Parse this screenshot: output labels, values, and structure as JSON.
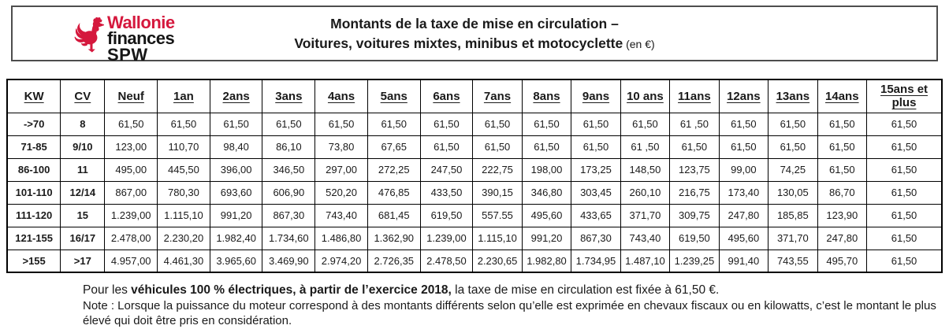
{
  "banner": {
    "logo": {
      "line1": "Wallonie",
      "line2": "finances",
      "line3": "SPW",
      "rooster_color": "#d5183d"
    },
    "title_line1": "Montants de la taxe de mise en circulation –",
    "title_line2_bold": "Voitures, voitures mixtes, minibus et motocyclette",
    "title_line2_suffix": " (en €)"
  },
  "table": {
    "columns": [
      "KW",
      "CV",
      "Neuf",
      "1an",
      "2ans",
      "3ans",
      "4ans",
      "5ans",
      "6ans",
      "7ans",
      "8ans",
      "9ans",
      "10 ans",
      "11ans",
      "12ans",
      "13ans",
      "14ans",
      "15ans et plus"
    ],
    "rows": [
      {
        "kw": "->70",
        "cv": "8",
        "values": [
          "61,50",
          "61,50",
          "61,50",
          "61,50",
          "61,50",
          "61,50",
          "61,50",
          "61,50",
          "61,50",
          "61,50",
          "61,50",
          "61 ,50",
          "61,50",
          "61,50",
          "61,50",
          "61,50"
        ]
      },
      {
        "kw": "71-85",
        "cv": "9/10",
        "values": [
          "123,00",
          "110,70",
          "98,40",
          "86,10",
          "73,80",
          "67,65",
          "61,50",
          "61,50",
          "61,50",
          "61,50",
          "61 ,50",
          "61,50",
          "61,50",
          "61,50",
          "61,50",
          "61,50"
        ]
      },
      {
        "kw": "86-100",
        "cv": "11",
        "values": [
          "495,00",
          "445,50",
          "396,00",
          "346,50",
          "297,00",
          "272,25",
          "247,50",
          "222,75",
          "198,00",
          "173,25",
          "148,50",
          "123,75",
          "99,00",
          "74,25",
          "61,50",
          "61,50"
        ]
      },
      {
        "kw": "101-110",
        "cv": "12/14",
        "values": [
          "867,00",
          "780,30",
          "693,60",
          "606,90",
          "520,20",
          "476,85",
          "433,50",
          "390,15",
          "346,80",
          "303,45",
          "260,10",
          "216,75",
          "173,40",
          "130,05",
          "86,70",
          "61,50"
        ]
      },
      {
        "kw": "111-120",
        "cv": "15",
        "values": [
          "1.239,00",
          "1.115,10",
          "991,20",
          "867,30",
          "743,40",
          "681,45",
          "619,50",
          "557.55",
          "495,60",
          "433,65",
          "371,70",
          "309,75",
          "247,80",
          "185,85",
          "123,90",
          "61,50"
        ]
      },
      {
        "kw": "121-155",
        "cv": "16/17",
        "values": [
          "2.478,00",
          "2.230,20",
          "1.982,40",
          "1.734,60",
          "1.486,80",
          "1.362,90",
          "1.239,00",
          "1.115,10",
          "991,20",
          "867,30",
          "743,40",
          "619,50",
          "495,60",
          "371,70",
          "247,80",
          "61,50"
        ]
      },
      {
        "kw": ">155",
        "cv": ">17",
        "values": [
          "4.957,00",
          "4.461,30",
          "3.965,60",
          "3.469,90",
          "2.974,20",
          "2.726,35",
          "2.478,50",
          "2.230,65",
          "1.982,80",
          "1.734,95",
          "1.487,10",
          "1.239,25",
          "991,40",
          "743,55",
          "495,70",
          "61,50"
        ]
      }
    ]
  },
  "footer": {
    "line1_prefix": "Pour les ",
    "line1_bold": "véhicules 100 % électriques, à partir de l’exercice 2018,",
    "line1_suffix": " la taxe de mise en circulation est fixée à 61,50 €.",
    "note": "Note : Lorsque la puissance du moteur correspond à des montants différents selon qu’elle est exprimée en chevaux fiscaux ou en kilowatts, c’est le montant le plus élevé qui doit être pris en considération."
  }
}
